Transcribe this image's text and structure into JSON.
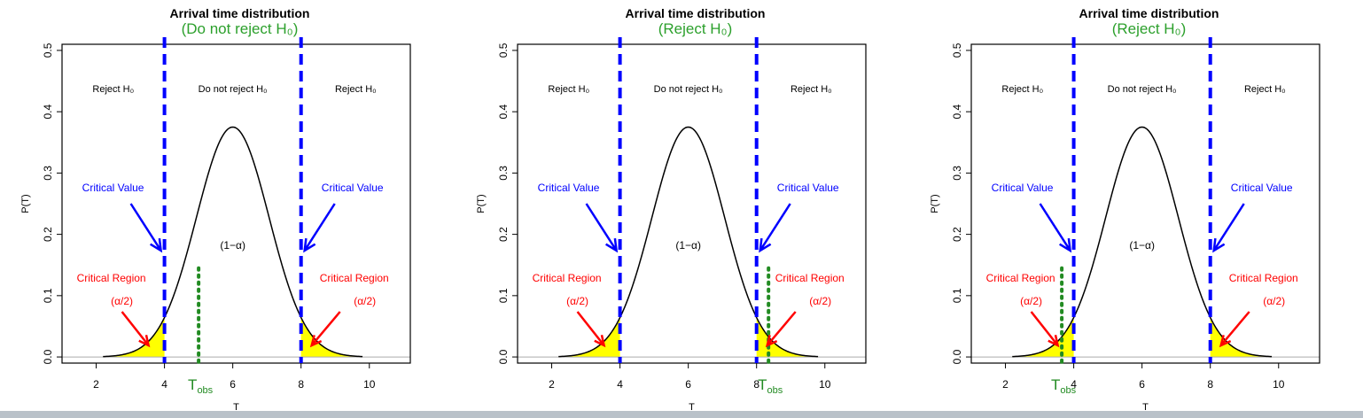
{
  "chart_data": [
    {
      "type": "area",
      "title": "Arrival time distribution",
      "subtitle": "(Do not reject H₀)",
      "xlabel": "T",
      "ylabel": "P(T)",
      "xlim": [
        1,
        11.2
      ],
      "ylim": [
        -0.01,
        0.51
      ],
      "x_ticks": [
        2,
        4,
        6,
        8,
        10
      ],
      "y_ticks": [
        "0.0",
        "0.1",
        "0.2",
        "0.3",
        "0.4",
        "0.5"
      ],
      "distribution": {
        "mean": 6,
        "sd": 1.065,
        "peak": 0.375,
        "x_min": 2.2,
        "x_max": 9.8
      },
      "critical_values": [
        4,
        8
      ],
      "t_obs": 5.0,
      "t_obs_label": "T",
      "t_obs_sub": "obs",
      "region_labels": {
        "left": "Reject H₀",
        "middle": "Do not reject H₀",
        "right": "Reject H₀"
      },
      "critical_value_label": "Critical Value",
      "critical_region_label": "Critical Region",
      "alpha_half_label": "(α/2)",
      "one_minus_alpha_label": "(1−α)",
      "grid": false
    },
    {
      "type": "area",
      "title": "Arrival time distribution",
      "subtitle": "(Reject H₀)",
      "xlabel": "T",
      "ylabel": "P(T)",
      "xlim": [
        1,
        11.2
      ],
      "ylim": [
        -0.01,
        0.51
      ],
      "x_ticks": [
        2,
        4,
        6,
        8,
        10
      ],
      "y_ticks": [
        "0.0",
        "0.1",
        "0.2",
        "0.3",
        "0.4",
        "0.5"
      ],
      "distribution": {
        "mean": 6,
        "sd": 1.065,
        "peak": 0.375,
        "x_min": 2.2,
        "x_max": 9.8
      },
      "critical_values": [
        4,
        8
      ],
      "t_obs": 8.35,
      "t_obs_label": "T",
      "t_obs_sub": "obs",
      "region_labels": {
        "left": "Reject H₀",
        "middle": "Do not reject H₀",
        "right": "Reject H₀"
      },
      "critical_value_label": "Critical Value",
      "critical_region_label": "Critical Region",
      "alpha_half_label": "(α/2)",
      "one_minus_alpha_label": "(1−α)",
      "grid": false
    },
    {
      "type": "area",
      "title": "Arrival time distribution",
      "subtitle": "(Reject H₀)",
      "xlabel": "T",
      "ylabel": "P(T)",
      "xlim": [
        1,
        11.2
      ],
      "ylim": [
        -0.01,
        0.51
      ],
      "x_ticks": [
        2,
        4,
        6,
        8,
        10
      ],
      "y_ticks": [
        "0.0",
        "0.1",
        "0.2",
        "0.3",
        "0.4",
        "0.5"
      ],
      "distribution": {
        "mean": 6,
        "sd": 1.065,
        "peak": 0.375,
        "x_min": 2.2,
        "x_max": 9.8
      },
      "critical_values": [
        4,
        8
      ],
      "t_obs": 3.65,
      "t_obs_label": "T",
      "t_obs_sub": "obs",
      "region_labels": {
        "left": "Reject H₀",
        "middle": "Do not reject H₀",
        "right": "Reject H₀"
      },
      "critical_value_label": "Critical Value",
      "critical_region_label": "Critical Region",
      "alpha_half_label": "(α/2)",
      "one_minus_alpha_label": "(1−α)",
      "grid": false
    }
  ],
  "colors": {
    "title": "#000000",
    "subtitle": "#2ca02c",
    "critical_line": "#0000ff",
    "critical_value_text": "#0000ff",
    "critical_region_text": "#ff0000",
    "tail_fill": "#ffff00",
    "t_obs": "#228b22",
    "curve": "#000000",
    "baseline": "#aaaaaa"
  }
}
